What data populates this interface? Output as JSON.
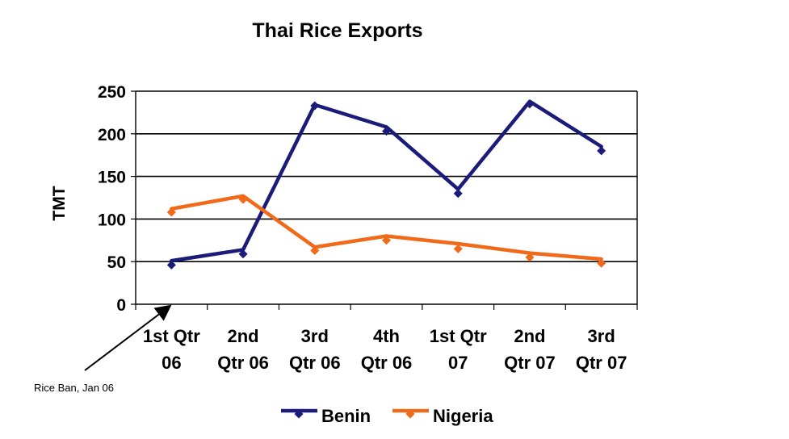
{
  "chart_data": {
    "type": "line",
    "title": "Thai Rice Exports",
    "xlabel": "",
    "ylabel": "TMT",
    "ylim": [
      0,
      250
    ],
    "yticks": [
      0,
      50,
      100,
      150,
      200,
      250
    ],
    "grid": true,
    "legend_position": "bottom",
    "categories": [
      [
        "1st Qtr",
        "06"
      ],
      [
        "2nd",
        "Qtr 06"
      ],
      [
        "3rd",
        "Qtr 06"
      ],
      [
        "4th",
        "Qtr 06"
      ],
      [
        "1st Qtr",
        "07"
      ],
      [
        "2nd",
        "Qtr 07"
      ],
      [
        "3rd",
        "Qtr 07"
      ]
    ],
    "series": [
      {
        "name": "Benin",
        "color": "#1b1b7a",
        "points": [
          46,
          59,
          233,
          203,
          130,
          235,
          180
        ],
        "trend": [
          51,
          64,
          234,
          208,
          135,
          238,
          185
        ]
      },
      {
        "name": "Nigeria",
        "color": "#f06a1a",
        "points": [
          108,
          123,
          63,
          75,
          65,
          55,
          48
        ],
        "trend": [
          112,
          127,
          67,
          80,
          71,
          60,
          53
        ]
      }
    ],
    "annotations": [
      {
        "text": "Rice Ban, Jan 06",
        "points_to_category": 0
      }
    ]
  }
}
